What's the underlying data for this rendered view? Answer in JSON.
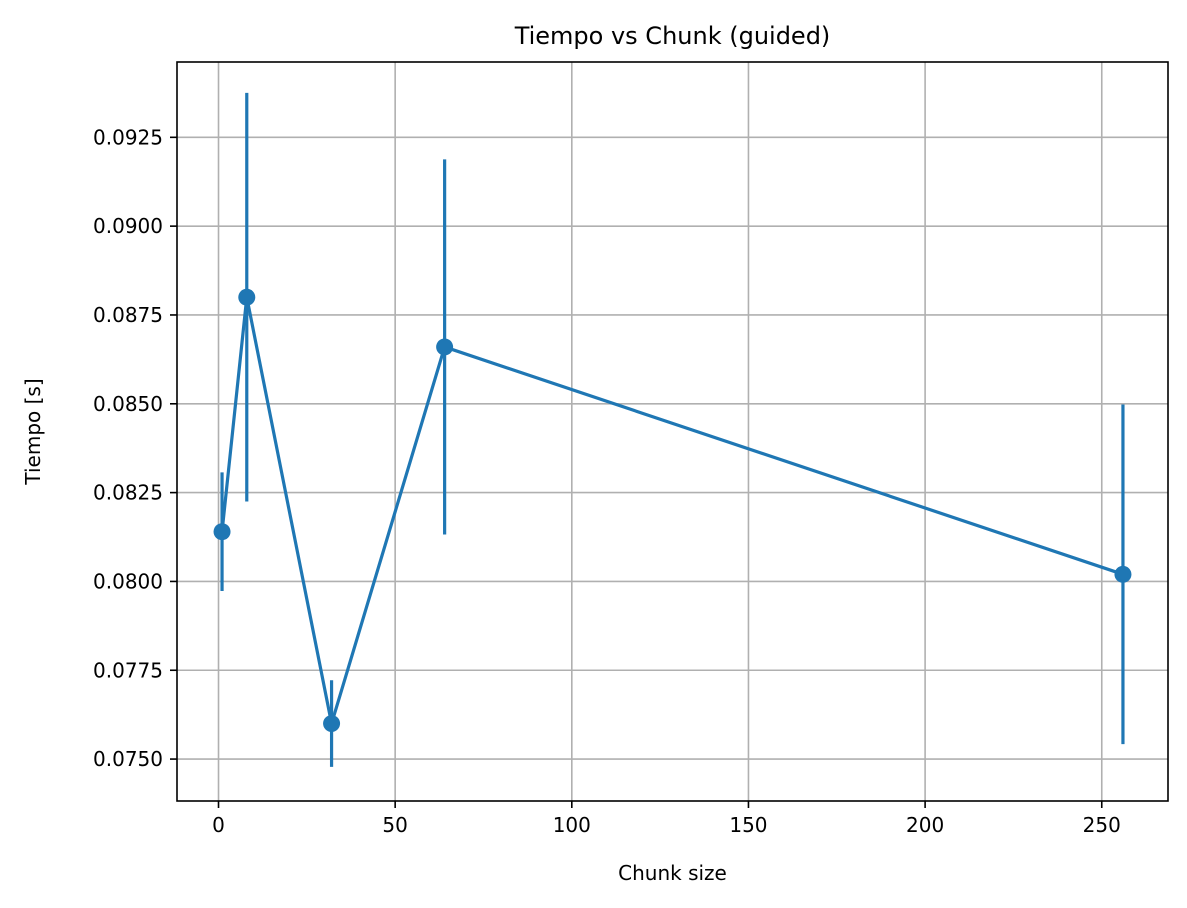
{
  "chart_data": {
    "type": "line",
    "title": "Tiempo vs Chunk (guided)",
    "xlabel": "Chunk size",
    "ylabel": "Tiempo [s]",
    "xlim": [
      -11.75,
      268.75
    ],
    "ylim": [
      0.07382,
      0.09462
    ],
    "grid": true,
    "x_ticks": [
      0,
      50,
      100,
      150,
      200,
      250
    ],
    "x_tick_labels": [
      "0",
      "50",
      "100",
      "150",
      "200",
      "250"
    ],
    "y_ticks": [
      0.075,
      0.0775,
      0.08,
      0.0825,
      0.085,
      0.0875,
      0.09,
      0.0925
    ],
    "y_tick_labels": [
      "0.0750",
      "0.0775",
      "0.0800",
      "0.0825",
      "0.0850",
      "0.0875",
      "0.0900",
      "0.0925"
    ],
    "series": [
      {
        "color": "#1f77b4",
        "marker": "circle",
        "errorbars": true,
        "x": [
          1,
          8,
          32,
          64,
          256
        ],
        "y": [
          0.0814,
          0.088,
          0.076,
          0.0866,
          0.0802
        ],
        "yerr": [
          0.00167,
          0.00575,
          0.00122,
          0.00528,
          0.00478
        ]
      }
    ]
  }
}
